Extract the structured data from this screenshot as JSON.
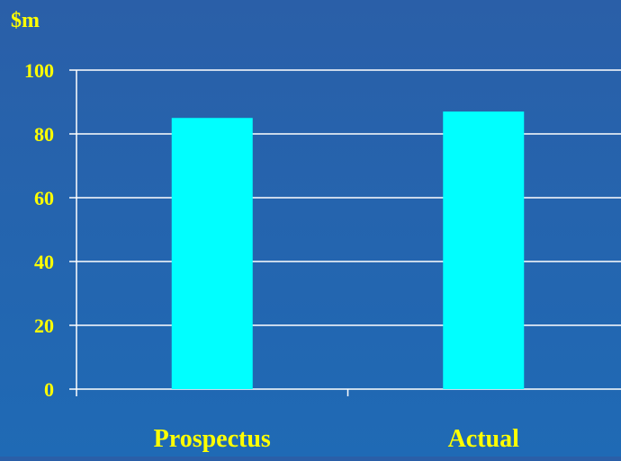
{
  "colors": {
    "background": "#1f63ad",
    "bar": "#00ffff",
    "grid": "#ffffff",
    "text": "#ffff00"
  },
  "chart_data": {
    "type": "bar",
    "title": "",
    "ylabel": "$m",
    "xlabel": "",
    "categories": [
      "Prospectus",
      "Actual"
    ],
    "values": [
      85,
      87
    ],
    "ylim": [
      0,
      100
    ],
    "yticks": [
      0,
      20,
      40,
      60,
      80,
      100
    ],
    "ytick_labels": [
      "0",
      "20",
      "40",
      "60",
      "80",
      "100"
    ],
    "grid": true,
    "legend": "none"
  }
}
